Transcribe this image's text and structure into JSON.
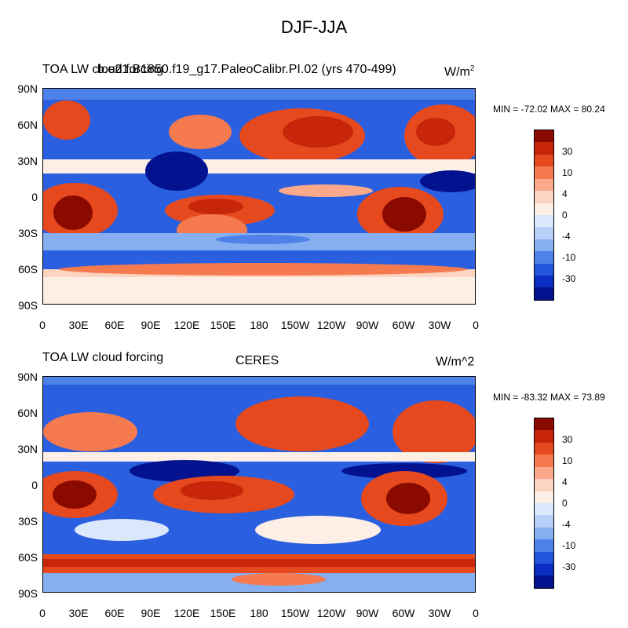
{
  "title": "DJF-JJA",
  "panels": [
    {
      "left_title": "TOA LW cloud forcing",
      "center_title": "b.e21.B1850.f19_g17.PaleoCalibr.PI.02 (yrs 470-499)",
      "units": "W/m",
      "units_sup": "2",
      "minmax": "MIN = -72.02 MAX =  80.24"
    },
    {
      "left_title": "TOA LW cloud forcing",
      "center_title": "CERES",
      "units": "W/m^2",
      "units_sup": "",
      "minmax": "MIN = -83.32 MAX =  73.89"
    }
  ],
  "lat_labels": [
    "90N",
    "60N",
    "30N",
    "0",
    "30S",
    "60S",
    "90S"
  ],
  "lon_labels": [
    "0",
    "30E",
    "60E",
    "90E",
    "120E",
    "150E",
    "180",
    "150W",
    "120W",
    "90W",
    "60W",
    "30W",
    "0"
  ],
  "colorbar": {
    "labels": [
      "30",
      "10",
      "4",
      "0",
      "-4",
      "-10",
      "-30"
    ],
    "colors": [
      "#8b0a00",
      "#c8260b",
      "#e6491d",
      "#f57a4f",
      "#fba98a",
      "#fdd4c0",
      "#fdeee6",
      "#dbe8fb",
      "#b6d0f7",
      "#86aef1",
      "#4f82e8",
      "#2456dd",
      "#0b2fc4",
      "#031390"
    ]
  }
}
